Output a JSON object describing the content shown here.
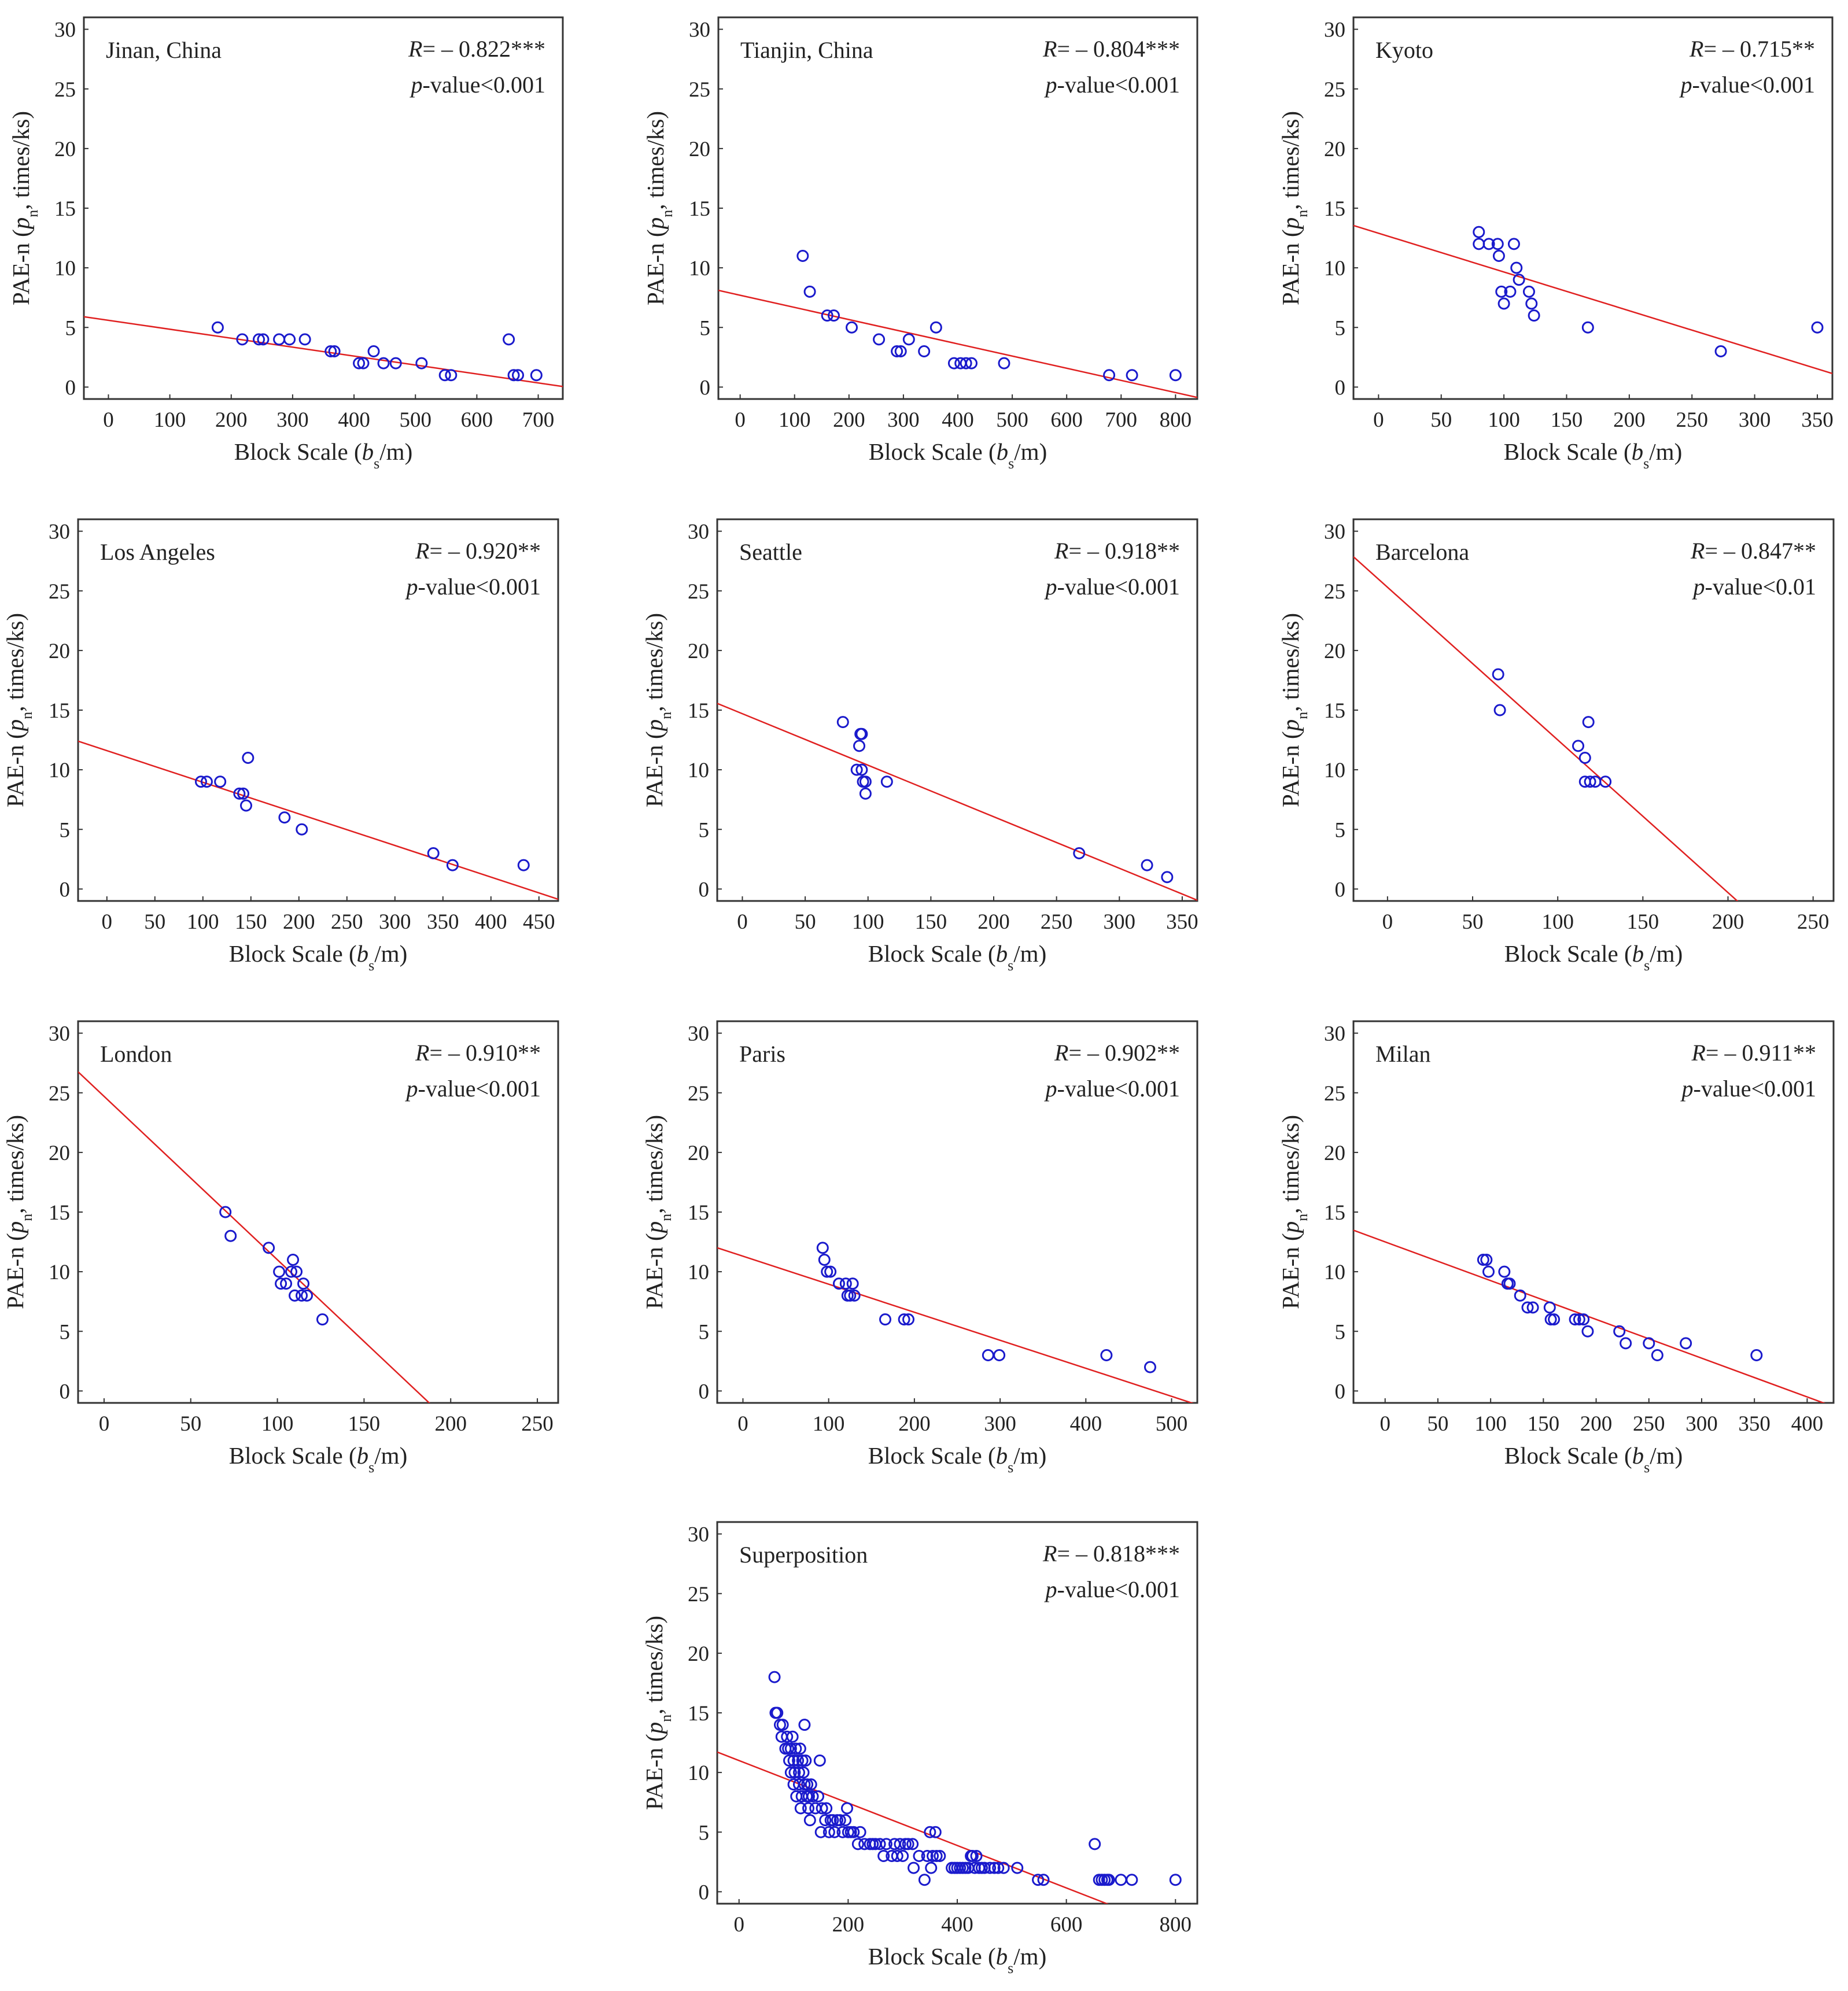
{
  "chart_data": [
    {
      "type": "scatter",
      "title": "Jinan, China",
      "stat_r": "= – 0.822***",
      "stat_p": "-value<0.001",
      "xlabel": "Block Scale",
      "ylabel": "PAE-n",
      "xlim": [
        -40,
        740
      ],
      "ylim": [
        -1,
        31
      ],
      "xticks": [
        0,
        100,
        200,
        300,
        400,
        500,
        600,
        700
      ],
      "yticks": [
        0,
        5,
        10,
        15,
        20,
        25,
        30
      ],
      "fit": {
        "slope": -0.0075,
        "intercept": 5.6
      },
      "points": [
        [
          178,
          5
        ],
        [
          218,
          4
        ],
        [
          245,
          4
        ],
        [
          252,
          4
        ],
        [
          278,
          4
        ],
        [
          295,
          4
        ],
        [
          320,
          4
        ],
        [
          362,
          3
        ],
        [
          368,
          3
        ],
        [
          408,
          2
        ],
        [
          415,
          2
        ],
        [
          432,
          3
        ],
        [
          448,
          2
        ],
        [
          468,
          2
        ],
        [
          510,
          2
        ],
        [
          548,
          1
        ],
        [
          558,
          1
        ],
        [
          652,
          4
        ],
        [
          660,
          1
        ],
        [
          667,
          1
        ],
        [
          697,
          1
        ]
      ]
    },
    {
      "type": "scatter",
      "title": "Tianjin, China",
      "stat_r": "= – 0.804***",
      "stat_p": "-value<0.001",
      "xlabel": "Block Scale",
      "ylabel": "PAE-n",
      "xlim": [
        -40,
        840
      ],
      "ylim": [
        -1,
        31
      ],
      "xticks": [
        0,
        100,
        200,
        300,
        400,
        500,
        600,
        700,
        800
      ],
      "yticks": [
        0,
        5,
        10,
        15,
        20,
        25,
        30
      ],
      "fit": {
        "slope": -0.0102,
        "intercept": 7.7
      },
      "points": [
        [
          115,
          11
        ],
        [
          128,
          8
        ],
        [
          160,
          6
        ],
        [
          172,
          6
        ],
        [
          205,
          5
        ],
        [
          255,
          4
        ],
        [
          288,
          3
        ],
        [
          295,
          3
        ],
        [
          310,
          4
        ],
        [
          338,
          3
        ],
        [
          360,
          5
        ],
        [
          393,
          2
        ],
        [
          405,
          2
        ],
        [
          415,
          2
        ],
        [
          425,
          2
        ],
        [
          485,
          2
        ],
        [
          678,
          1
        ],
        [
          720,
          1
        ],
        [
          800,
          1
        ]
      ]
    },
    {
      "type": "scatter",
      "title": "Kyoto",
      "stat_r": "= – 0.715**",
      "stat_p": "-value<0.001",
      "xlabel": "Block Scale",
      "ylabel": "PAE-n",
      "xlim": [
        -20,
        362
      ],
      "ylim": [
        -1,
        31
      ],
      "xticks": [
        0,
        50,
        100,
        150,
        200,
        250,
        300,
        350
      ],
      "yticks": [
        0,
        5,
        10,
        15,
        20,
        25,
        30
      ],
      "fit": {
        "slope": -0.0325,
        "intercept": 12.9
      },
      "points": [
        [
          80,
          13
        ],
        [
          80,
          12
        ],
        [
          88,
          12
        ],
        [
          95,
          12
        ],
        [
          96,
          11
        ],
        [
          98,
          8
        ],
        [
          100,
          7
        ],
        [
          105,
          8
        ],
        [
          108,
          12
        ],
        [
          110,
          10
        ],
        [
          112,
          9
        ],
        [
          120,
          8
        ],
        [
          122,
          7
        ],
        [
          124,
          6
        ],
        [
          167,
          5
        ],
        [
          273,
          3
        ],
        [
          350,
          5
        ]
      ]
    },
    {
      "type": "scatter",
      "title": "Los Angeles",
      "stat_r": "= – 0.920**",
      "stat_p": "-value<0.001",
      "xlabel": "Block Scale",
      "ylabel": "PAE-n",
      "xlim": [
        -30,
        470
      ],
      "ylim": [
        -1,
        31
      ],
      "xticks": [
        0,
        50,
        100,
        150,
        200,
        250,
        300,
        350,
        400,
        450
      ],
      "yticks": [
        0,
        5,
        10,
        15,
        20,
        25,
        30
      ],
      "fit": {
        "slope": -0.0265,
        "intercept": 11.6
      },
      "points": [
        [
          98,
          9
        ],
        [
          104,
          9
        ],
        [
          118,
          9
        ],
        [
          138,
          8
        ],
        [
          142,
          8
        ],
        [
          145,
          7
        ],
        [
          147,
          11
        ],
        [
          185,
          6
        ],
        [
          203,
          5
        ],
        [
          340,
          3
        ],
        [
          360,
          2
        ],
        [
          434,
          2
        ]
      ]
    },
    {
      "type": "scatter",
      "title": "Seattle",
      "stat_r": "= – 0.918**",
      "stat_p": "-value<0.001",
      "xlabel": "Block Scale",
      "ylabel": "PAE-n",
      "xlim": [
        -20,
        362
      ],
      "ylim": [
        -1,
        31
      ],
      "xticks": [
        0,
        50,
        100,
        150,
        200,
        250,
        300,
        350
      ],
      "yticks": [
        0,
        5,
        10,
        15,
        20,
        25,
        30
      ],
      "fit": {
        "slope": -0.0432,
        "intercept": 14.7
      },
      "points": [
        [
          80,
          14
        ],
        [
          91,
          10
        ],
        [
          93,
          12
        ],
        [
          94,
          13
        ],
        [
          95,
          10
        ],
        [
          95,
          13
        ],
        [
          96,
          9
        ],
        [
          98,
          9
        ],
        [
          98,
          8
        ],
        [
          115,
          9
        ],
        [
          268,
          3
        ],
        [
          322,
          2
        ],
        [
          338,
          1
        ]
      ]
    },
    {
      "type": "scatter",
      "title": "Barcelona",
      "stat_r": "= – 0.847**",
      "stat_p": "-value<0.01",
      "xlabel": "Block Scale",
      "ylabel": "PAE-n",
      "xlim": [
        -20,
        262
      ],
      "ylim": [
        -1,
        31
      ],
      "xticks": [
        0,
        50,
        100,
        150,
        200,
        250
      ],
      "yticks": [
        0,
        5,
        10,
        15,
        20,
        25,
        30
      ],
      "fit": {
        "slope": -0.128,
        "intercept": 25.3
      },
      "points": [
        [
          65,
          18
        ],
        [
          66,
          15
        ],
        [
          112,
          12
        ],
        [
          116,
          11
        ],
        [
          116,
          9
        ],
        [
          118,
          14
        ],
        [
          119,
          9
        ],
        [
          122,
          9
        ],
        [
          128,
          9
        ]
      ]
    },
    {
      "type": "scatter",
      "title": "London",
      "stat_r": "= – 0.910**",
      "stat_p": "-value<0.001",
      "xlabel": "Block Scale",
      "ylabel": "PAE-n",
      "xlim": [
        -15,
        262
      ],
      "ylim": [
        -1,
        31
      ],
      "xticks": [
        0,
        50,
        100,
        150,
        200,
        250
      ],
      "yticks": [
        0,
        5,
        10,
        15,
        20,
        25,
        30
      ],
      "fit": {
        "slope": -0.137,
        "intercept": 24.7
      },
      "points": [
        [
          70,
          15
        ],
        [
          73,
          13
        ],
        [
          95,
          12
        ],
        [
          101,
          10
        ],
        [
          102,
          9
        ],
        [
          105,
          9
        ],
        [
          108,
          10
        ],
        [
          109,
          11
        ],
        [
          110,
          8
        ],
        [
          111,
          10
        ],
        [
          114,
          8
        ],
        [
          115,
          9
        ],
        [
          117,
          8
        ],
        [
          126,
          6
        ]
      ]
    },
    {
      "type": "scatter",
      "title": "Paris",
      "stat_r": "= – 0.902**",
      "stat_p": "-value<0.001",
      "xlabel": "Block Scale",
      "ylabel": "PAE-n",
      "xlim": [
        -30,
        530
      ],
      "ylim": [
        -1,
        31
      ],
      "xticks": [
        0,
        100,
        200,
        300,
        400,
        500
      ],
      "yticks": [
        0,
        5,
        10,
        15,
        20,
        25,
        30
      ],
      "fit": {
        "slope": -0.0235,
        "intercept": 11.3
      },
      "points": [
        [
          93,
          12
        ],
        [
          95,
          11
        ],
        [
          98,
          10
        ],
        [
          102,
          10
        ],
        [
          112,
          9
        ],
        [
          120,
          9
        ],
        [
          122,
          8
        ],
        [
          125,
          8
        ],
        [
          128,
          9
        ],
        [
          130,
          8
        ],
        [
          166,
          6
        ],
        [
          188,
          6
        ],
        [
          193,
          6
        ],
        [
          286,
          3
        ],
        [
          299,
          3
        ],
        [
          424,
          3
        ],
        [
          475,
          2
        ]
      ]
    },
    {
      "type": "scatter",
      "title": "Milan",
      "stat_r": "= – 0.911**",
      "stat_p": "-value<0.001",
      "xlabel": "Block Scale",
      "ylabel": "PAE-n",
      "xlim": [
        -30,
        425
      ],
      "ylim": [
        -1,
        31
      ],
      "xticks": [
        0,
        50,
        100,
        150,
        200,
        250,
        300,
        350,
        400
      ],
      "yticks": [
        0,
        5,
        10,
        15,
        20,
        25,
        30
      ],
      "fit": {
        "slope": -0.0325,
        "intercept": 12.5
      },
      "points": [
        [
          93,
          11
        ],
        [
          96,
          11
        ],
        [
          98,
          10
        ],
        [
          113,
          10
        ],
        [
          116,
          9
        ],
        [
          118,
          9
        ],
        [
          128,
          8
        ],
        [
          135,
          7
        ],
        [
          140,
          7
        ],
        [
          156,
          7
        ],
        [
          157,
          6
        ],
        [
          160,
          6
        ],
        [
          180,
          6
        ],
        [
          184,
          6
        ],
        [
          188,
          6
        ],
        [
          192,
          5
        ],
        [
          222,
          5
        ],
        [
          228,
          4
        ],
        [
          250,
          4
        ],
        [
          258,
          3
        ],
        [
          285,
          4
        ],
        [
          352,
          3
        ]
      ]
    },
    {
      "type": "scatter",
      "title": "Superposition",
      "stat_r": "= – 0.818***",
      "stat_p": "-value<0.001",
      "xlabel": "Block Scale",
      "ylabel": "PAE-n",
      "xlim": [
        -40,
        840
      ],
      "ylim": [
        -1,
        31
      ],
      "xticks": [
        0,
        200,
        400,
        600,
        800
      ],
      "yticks": [
        0,
        5,
        10,
        15,
        20,
        25,
        30
      ],
      "fit": {
        "slope": -0.0178,
        "intercept": 11.0
      },
      "points": [
        [
          65,
          18
        ],
        [
          67,
          15
        ],
        [
          70,
          15
        ],
        [
          75,
          14
        ],
        [
          80,
          14
        ],
        [
          78,
          13
        ],
        [
          85,
          12
        ],
        [
          88,
          13
        ],
        [
          90,
          12
        ],
        [
          92,
          11
        ],
        [
          95,
          12
        ],
        [
          95,
          10
        ],
        [
          98,
          13
        ],
        [
          100,
          11
        ],
        [
          100,
          9
        ],
        [
          102,
          10
        ],
        [
          104,
          12
        ],
        [
          105,
          8
        ],
        [
          108,
          11
        ],
        [
          110,
          9
        ],
        [
          110,
          10
        ],
        [
          112,
          12
        ],
        [
          113,
          7
        ],
        [
          115,
          8
        ],
        [
          116,
          11
        ],
        [
          118,
          10
        ],
        [
          120,
          9
        ],
        [
          120,
          14
        ],
        [
          122,
          11
        ],
        [
          124,
          8
        ],
        [
          125,
          9
        ],
        [
          127,
          7
        ],
        [
          128,
          8
        ],
        [
          130,
          6
        ],
        [
          132,
          9
        ],
        [
          135,
          8
        ],
        [
          140,
          7
        ],
        [
          145,
          8
        ],
        [
          148,
          11
        ],
        [
          150,
          5
        ],
        [
          152,
          7
        ],
        [
          158,
          6
        ],
        [
          160,
          7
        ],
        [
          165,
          5
        ],
        [
          168,
          6
        ],
        [
          172,
          6
        ],
        [
          175,
          5
        ],
        [
          180,
          6
        ],
        [
          185,
          6
        ],
        [
          190,
          5
        ],
        [
          195,
          6
        ],
        [
          198,
          7
        ],
        [
          200,
          5
        ],
        [
          205,
          5
        ],
        [
          210,
          5
        ],
        [
          218,
          4
        ],
        [
          222,
          5
        ],
        [
          230,
          4
        ],
        [
          240,
          4
        ],
        [
          245,
          4
        ],
        [
          250,
          4
        ],
        [
          258,
          4
        ],
        [
          265,
          3
        ],
        [
          270,
          4
        ],
        [
          280,
          3
        ],
        [
          285,
          4
        ],
        [
          290,
          3
        ],
        [
          295,
          4
        ],
        [
          300,
          3
        ],
        [
          305,
          4
        ],
        [
          310,
          4
        ],
        [
          318,
          4
        ],
        [
          320,
          2
        ],
        [
          330,
          3
        ],
        [
          340,
          1
        ],
        [
          345,
          3
        ],
        [
          350,
          5
        ],
        [
          352,
          2
        ],
        [
          355,
          3
        ],
        [
          360,
          5
        ],
        [
          362,
          3
        ],
        [
          368,
          3
        ],
        [
          390,
          2
        ],
        [
          395,
          2
        ],
        [
          400,
          2
        ],
        [
          405,
          2
        ],
        [
          410,
          2
        ],
        [
          415,
          2
        ],
        [
          420,
          2
        ],
        [
          425,
          3
        ],
        [
          428,
          3
        ],
        [
          432,
          2
        ],
        [
          435,
          3
        ],
        [
          440,
          2
        ],
        [
          445,
          2
        ],
        [
          450,
          2
        ],
        [
          460,
          2
        ],
        [
          468,
          2
        ],
        [
          475,
          2
        ],
        [
          485,
          2
        ],
        [
          510,
          2
        ],
        [
          548,
          1
        ],
        [
          558,
          1
        ],
        [
          652,
          4
        ],
        [
          660,
          1
        ],
        [
          665,
          1
        ],
        [
          670,
          1
        ],
        [
          675,
          1
        ],
        [
          678,
          1
        ],
        [
          700,
          1
        ],
        [
          720,
          1
        ],
        [
          800,
          1
        ]
      ]
    }
  ]
}
